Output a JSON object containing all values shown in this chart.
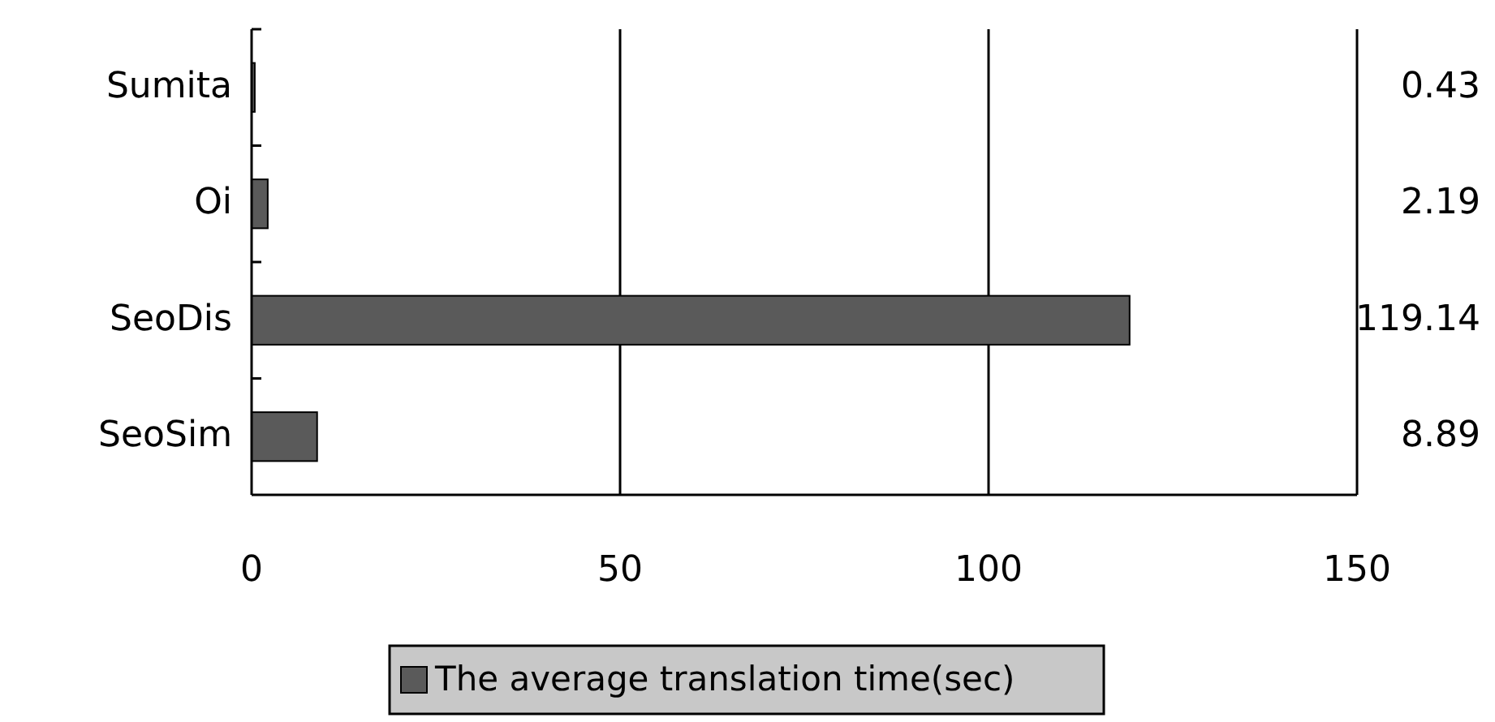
{
  "chart_data": {
    "type": "bar",
    "orientation": "horizontal",
    "categories": [
      "Sumita",
      "Oi",
      "SeoDis",
      "SeoSim"
    ],
    "series": [
      {
        "name": "The average translation time(sec)",
        "color": "#5a5a5a",
        "values": [
          0.43,
          2.19,
          119.14,
          8.89
        ]
      }
    ],
    "xlim": [
      0,
      150
    ],
    "xticks": [
      0,
      50,
      100,
      150
    ],
    "grid": "x",
    "data_labels": true,
    "legend": "bottom"
  }
}
